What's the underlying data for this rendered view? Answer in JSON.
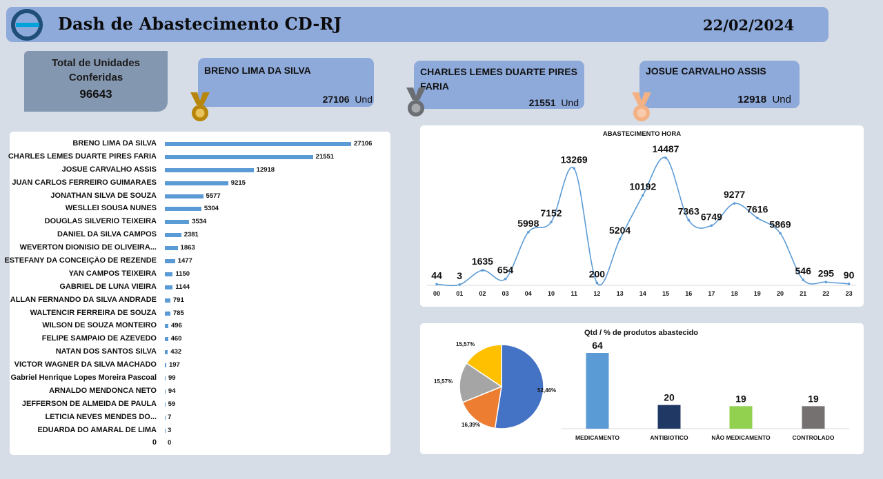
{
  "header": {
    "title": "Dash de Abastecimento CD-RJ",
    "date": "22/02/2024",
    "logo": "company-logo"
  },
  "total": {
    "label": "Total de Unidades Conferidas",
    "value": "96643"
  },
  "top3": [
    {
      "name": "BRENO LIMA DA SILVA",
      "value": "27106",
      "unit": "Und",
      "medal": "gold-medal-icon",
      "medal_color": "#b8860b"
    },
    {
      "name": "CHARLES LEMES DUARTE PIRES FARIA",
      "value": "21551",
      "unit": "Und",
      "medal": "silver-medal-icon",
      "medal_color": "#6b6e73"
    },
    {
      "name": "JOSUE CARVALHO ASSIS",
      "value": "12918",
      "unit": "Und",
      "medal": "bronze-medal-icon",
      "medal_color": "#f4b183"
    }
  ],
  "chart_data": [
    {
      "type": "bar",
      "orientation": "horizontal",
      "title": "",
      "categories": [
        "BRENO LIMA DA SILVA",
        "CHARLES LEMES DUARTE PIRES FARIA",
        "JOSUE CARVALHO ASSIS",
        "JUAN CARLOS FERREIRO GUIMARAES",
        "JONATHAN SILVA DE SOUZA",
        "WESLLEI SOUSA NUNES",
        "DOUGLAS SILVERIO TEIXEIRA",
        "DANIEL DA SILVA CAMPOS",
        "WEVERTON DIONISIO DE OLIVEIRA...",
        "ESTEFANY DA CONCEIÇÃO DE REZENDE",
        "YAN CAMPOS TEIXEIRA",
        "GABRIEL DE LUNA VIEIRA",
        "ALLAN FERNANDO DA SILVA ANDRADE",
        "WALTENCIR FERREIRA DE SOUZA",
        "WILSON DE SOUZA MONTEIRO",
        "FELIPE SAMPAIO DE AZEVEDO",
        "NATAN DOS SANTOS SILVA",
        "VICTOR WAGNER DA SILVA MACHADO",
        "Gabriel Henrique Lopes Moreira Pascoal",
        "ARNALDO MENDONCA NETO",
        "JEFFERSON DE ALMEIDA DE PAULA",
        "LETICIA NEVES MENDES DO...",
        "EDUARDA DO AMARAL DE LIMA",
        "0"
      ],
      "values": [
        27106,
        21551,
        12918,
        9215,
        5577,
        5304,
        3534,
        2381,
        1863,
        1477,
        1150,
        1144,
        791,
        785,
        496,
        460,
        432,
        197,
        99,
        94,
        59,
        7,
        3,
        0
      ],
      "color": "#5b9bd5"
    },
    {
      "type": "line",
      "title": "ABASTECIMENTO  HORA",
      "x": [
        "00",
        "01",
        "02",
        "03",
        "04",
        "10",
        "11",
        "12",
        "13",
        "14",
        "15",
        "16",
        "17",
        "18",
        "19",
        "20",
        "21",
        "22",
        "23"
      ],
      "values": [
        44,
        3,
        1635,
        654,
        5998,
        7152,
        13269,
        200,
        5204,
        10192,
        14487,
        7363,
        6749,
        9277,
        7616,
        5869,
        546,
        295,
        90
      ],
      "color": "#5b9bd5",
      "smooth": true
    },
    {
      "type": "pie",
      "title": "",
      "labels": [
        "MEDICAMENTO",
        "ANTIBIOTICO",
        "NÃO MEDICAMENTO",
        "CONTROLADO"
      ],
      "values": [
        52.46,
        16.39,
        15.57,
        15.57
      ],
      "value_labels": [
        "52,46%",
        "16,39%",
        "15,57%",
        "15,57%"
      ],
      "colors": [
        "#4472c4",
        "#ed7d31",
        "#a5a5a5",
        "#ffc000"
      ]
    },
    {
      "type": "bar",
      "title": "Qtd / % de produtos abastecido",
      "categories": [
        "MEDICAMENTO",
        "ANTIBIOTICO",
        "NÃO MEDICAMENTO",
        "CONTROLADO"
      ],
      "values": [
        64,
        20,
        19,
        19
      ],
      "colors": [
        "#5b9bd5",
        "#203864",
        "#92d050",
        "#767171"
      ],
      "ylim": [
        0,
        64
      ]
    }
  ]
}
